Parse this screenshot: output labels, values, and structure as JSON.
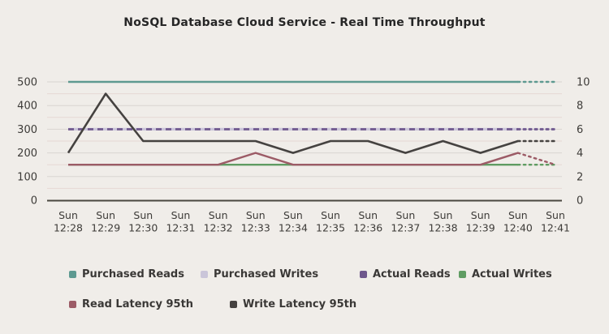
{
  "colors": {
    "background": "#f0ede9",
    "title_text": "#262626",
    "axis_text": "#3d3b38",
    "legend_text": "#3a3836",
    "grid_major": "#d9d5d1",
    "grid_minor": "#e6d8d4",
    "axis_line": "#49463f"
  },
  "chart_data": {
    "type": "line",
    "title": "NoSQL Database Cloud Service - Real Time Throughput",
    "x_day": "Sun",
    "x_times": [
      "12:28",
      "12:29",
      "12:30",
      "12:31",
      "12:32",
      "12:33",
      "12:34",
      "12:35",
      "12:36",
      "12:37",
      "12:38",
      "12:39",
      "12:40",
      "12:41"
    ],
    "left_axis": {
      "ticks": [
        0,
        100,
        200,
        300,
        400,
        500
      ],
      "range": [
        0,
        500
      ],
      "grid_step": 50
    },
    "right_axis": {
      "ticks": [
        0,
        2,
        4,
        6,
        8,
        10
      ],
      "range": [
        0,
        10
      ]
    },
    "grid": true,
    "legend_position": "bottom",
    "series": [
      {
        "name": "Purchased Reads",
        "color": "#5e9a91",
        "axis": "left",
        "style": "solid",
        "width": 2.4,
        "last_segment_dotted": true,
        "values": [
          500,
          500,
          500,
          500,
          500,
          500,
          500,
          500,
          500,
          500,
          500,
          500,
          500,
          500
        ]
      },
      {
        "name": "Purchased Writes",
        "color": "#cac5d9",
        "axis": "left",
        "style": "solid",
        "width": 3.2,
        "last_segment_dotted": true,
        "values": [
          300,
          300,
          300,
          300,
          300,
          300,
          300,
          300,
          300,
          300,
          300,
          300,
          300,
          300
        ]
      },
      {
        "name": "Actual Reads",
        "color": "#6e578c",
        "axis": "left",
        "style": "dashed",
        "width": 2.6,
        "last_segment_dotted": true,
        "values": [
          300,
          300,
          300,
          300,
          300,
          300,
          300,
          300,
          300,
          300,
          300,
          300,
          300,
          300
        ]
      },
      {
        "name": "Actual Writes",
        "color": "#5f9c62",
        "axis": "left",
        "style": "solid",
        "width": 2.4,
        "last_segment_dotted": true,
        "values": [
          150,
          150,
          150,
          150,
          150,
          150,
          150,
          150,
          150,
          150,
          150,
          150,
          150,
          150
        ]
      },
      {
        "name": "Read Latency 95th",
        "color": "#9c5b66",
        "axis": "right",
        "style": "solid",
        "width": 2.4,
        "last_segment_dotted": true,
        "values": [
          3,
          3,
          3,
          3,
          3,
          4,
          3,
          3,
          3,
          3,
          3,
          3,
          4,
          3
        ]
      },
      {
        "name": "Write Latency 95th",
        "color": "#454240",
        "axis": "right",
        "style": "solid",
        "width": 2.6,
        "last_segment_dotted": true,
        "values": [
          4,
          9,
          5,
          5,
          5,
          5,
          4,
          5,
          5,
          4,
          5,
          4,
          5,
          5
        ]
      }
    ],
    "legend": {
      "rows": [
        [
          "Purchased Reads",
          "Purchased Writes",
          "Actual Reads",
          "Actual Writes"
        ],
        [
          "Read Latency 95th",
          "Write Latency 95th"
        ]
      ]
    }
  }
}
